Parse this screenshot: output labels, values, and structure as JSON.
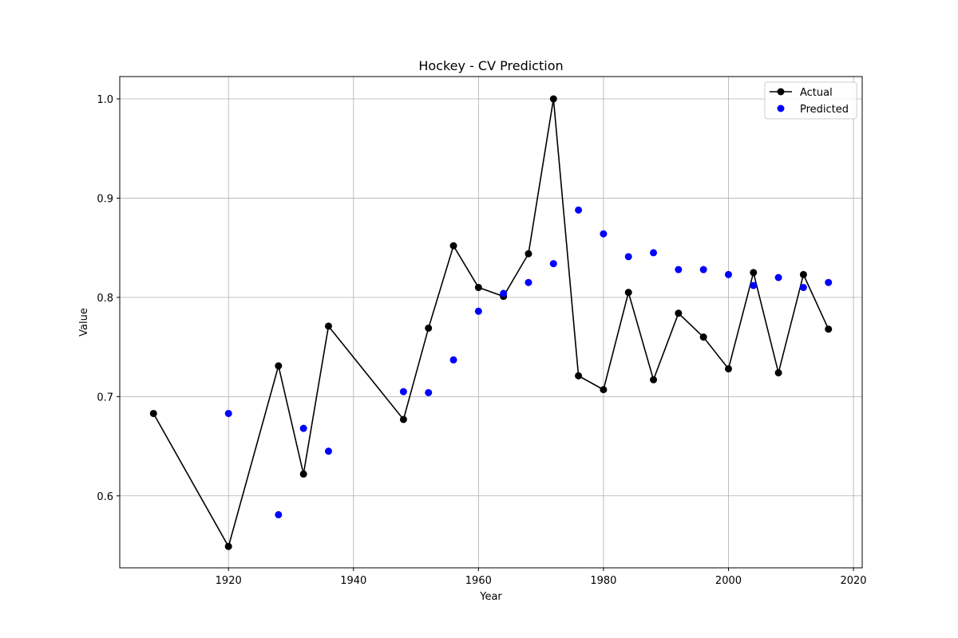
{
  "chart_data": {
    "type": "line",
    "title": "Hockey - CV Prediction",
    "xlabel": "Year",
    "ylabel": "Value",
    "xlim": [
      1902.6,
      2021.4
    ],
    "ylim": [
      0.5275,
      1.0225
    ],
    "xticks": [
      1920,
      1940,
      1960,
      1980,
      2000,
      2020
    ],
    "yticks": [
      0.6,
      0.7,
      0.8,
      0.9,
      1.0
    ],
    "ytick_labels": [
      "0.6",
      "0.7",
      "0.8",
      "0.9",
      "1.0"
    ],
    "grid": true,
    "legend_position": "top-right",
    "series": [
      {
        "name": "Actual",
        "kind": "line-marker",
        "color": "#000000",
        "x": [
          1908,
          1920,
          1928,
          1932,
          1936,
          1948,
          1952,
          1956,
          1960,
          1964,
          1968,
          1972,
          1976,
          1980,
          1984,
          1988,
          1992,
          1996,
          2000,
          2004,
          2008,
          2012,
          2016
        ],
        "y": [
          0.683,
          0.549,
          0.731,
          0.622,
          0.771,
          0.677,
          0.769,
          0.852,
          0.81,
          0.801,
          0.844,
          1.0,
          0.721,
          0.707,
          0.805,
          0.717,
          0.784,
          0.76,
          0.728,
          0.825,
          0.724,
          0.823,
          0.768
        ]
      },
      {
        "name": "Predicted",
        "kind": "scatter",
        "color": "#0000ff",
        "x": [
          1920,
          1928,
          1932,
          1936,
          1948,
          1952,
          1956,
          1960,
          1964,
          1968,
          1972,
          1976,
          1980,
          1984,
          1988,
          1992,
          1996,
          2000,
          2004,
          2008,
          2012,
          2016
        ],
        "y": [
          0.683,
          0.581,
          0.668,
          0.645,
          0.705,
          0.704,
          0.737,
          0.786,
          0.804,
          0.815,
          0.834,
          0.888,
          0.864,
          0.841,
          0.845,
          0.828,
          0.828,
          0.823,
          0.812,
          0.82,
          0.81,
          0.815
        ]
      }
    ]
  }
}
